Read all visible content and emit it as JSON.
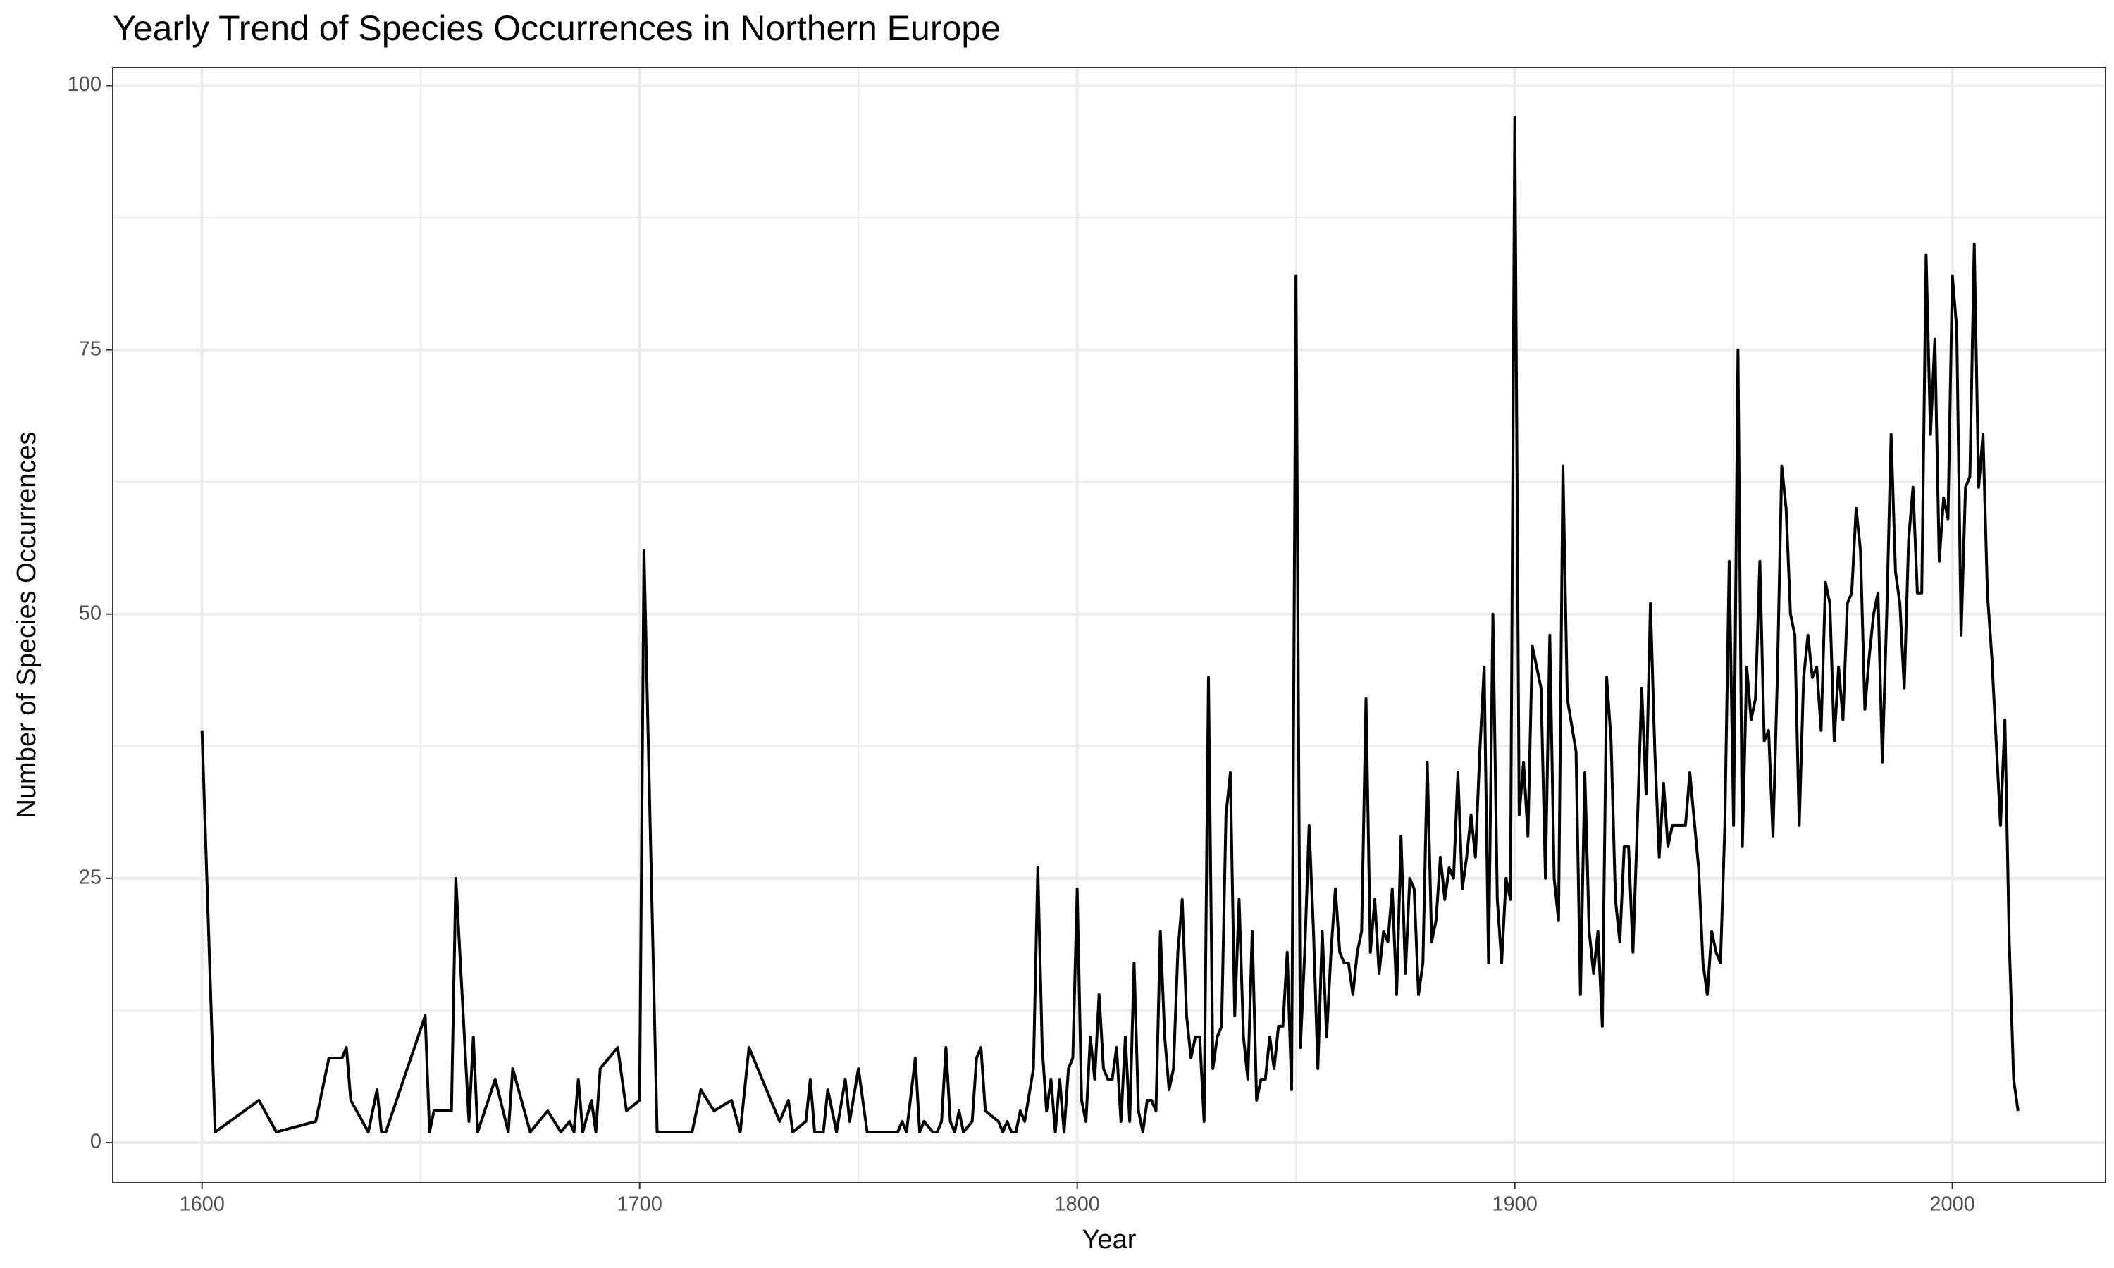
{
  "chart_data": {
    "type": "line",
    "title": "Yearly Trend of Species Occurrences in Northern Europe",
    "x_label": "Year",
    "y_label": "Number of Species Occurrences",
    "xlim": [
      1579.6,
      2035
    ],
    "ylim": [
      -3.8,
      101.7
    ],
    "xticks": [
      1600,
      1700,
      1800,
      1900,
      2000
    ],
    "yticks": [
      0,
      25,
      50,
      75,
      100
    ],
    "x_minor_ticks": [
      1650,
      1750,
      1850,
      1950
    ],
    "y_minor_ticks": [
      12.5,
      37.5,
      62.5,
      87.5
    ],
    "grid": true,
    "series": [
      {
        "name": "Occurrences",
        "color": "#000000",
        "x": [
          1600,
          1603,
          1613,
          1617,
          1626,
          1629,
          1632,
          1633,
          1634,
          1638,
          1640,
          1641,
          1642,
          1651,
          1652,
          1653,
          1657,
          1658,
          1661,
          1662,
          1663,
          1667,
          1670,
          1671,
          1675,
          1679,
          1682,
          1684,
          1685,
          1686,
          1687,
          1689,
          1690,
          1691,
          1695,
          1697,
          1700,
          1701,
          1704,
          1712,
          1714,
          1717,
          1721,
          1723,
          1725,
          1732,
          1734,
          1735,
          1738,
          1739,
          1740,
          1742,
          1743,
          1745,
          1747,
          1748,
          1750,
          1752,
          1759,
          1760,
          1761,
          1763,
          1764,
          1765,
          1767,
          1768,
          1769,
          1770,
          1771,
          1772,
          1773,
          1774,
          1776,
          1777,
          1778,
          1779,
          1782,
          1783,
          1784,
          1785,
          1786,
          1787,
          1788,
          1790,
          1791,
          1792,
          1793,
          1794,
          1795,
          1796,
          1797,
          1798,
          1799,
          1800,
          1801,
          1802,
          1803,
          1804,
          1805,
          1806,
          1807,
          1808,
          1809,
          1810,
          1811,
          1812,
          1813,
          1814,
          1815,
          1816,
          1817,
          1818,
          1819,
          1820,
          1821,
          1822,
          1823,
          1824,
          1825,
          1826,
          1827,
          1828,
          1829,
          1830,
          1831,
          1832,
          1833,
          1834,
          1835,
          1836,
          1837,
          1838,
          1839,
          1840,
          1841,
          1842,
          1843,
          1844,
          1845,
          1846,
          1847,
          1848,
          1849,
          1850,
          1851,
          1852,
          1853,
          1854,
          1855,
          1856,
          1857,
          1858,
          1859,
          1860,
          1861,
          1862,
          1863,
          1864,
          1865,
          1866,
          1867,
          1868,
          1869,
          1870,
          1871,
          1872,
          1873,
          1874,
          1875,
          1876,
          1877,
          1878,
          1879,
          1880,
          1881,
          1882,
          1883,
          1884,
          1885,
          1886,
          1887,
          1888,
          1889,
          1890,
          1891,
          1892,
          1893,
          1894,
          1895,
          1896,
          1897,
          1898,
          1899,
          1900,
          1901,
          1902,
          1903,
          1904,
          1905,
          1906,
          1907,
          1908,
          1909,
          1910,
          1911,
          1912,
          1914,
          1915,
          1916,
          1917,
          1918,
          1919,
          1920,
          1921,
          1922,
          1923,
          1924,
          1925,
          1926,
          1927,
          1928,
          1929,
          1930,
          1931,
          1932,
          1933,
          1934,
          1935,
          1936,
          1937,
          1939,
          1940,
          1942,
          1943,
          1944,
          1945,
          1946,
          1947,
          1948,
          1949,
          1950,
          1951,
          1952,
          1953,
          1954,
          1955,
          1956,
          1957,
          1958,
          1959,
          1960,
          1961,
          1962,
          1963,
          1964,
          1965,
          1966,
          1967,
          1968,
          1969,
          1970,
          1971,
          1972,
          1973,
          1974,
          1975,
          1976,
          1977,
          1978,
          1979,
          1980,
          1981,
          1982,
          1983,
          1984,
          1985,
          1986,
          1987,
          1988,
          1989,
          1990,
          1991,
          1992,
          1993,
          1994,
          1995,
          1996,
          1997,
          1998,
          1999,
          2000,
          2001,
          2002,
          2003,
          2004,
          2005,
          2006,
          2007,
          2008,
          2009,
          2010,
          2011,
          2012,
          2013,
          2014,
          2015
        ],
        "values": [
          39,
          1,
          4,
          1,
          2,
          8,
          8,
          9,
          4,
          1,
          5,
          1,
          1,
          12,
          1,
          3,
          3,
          25,
          2,
          10,
          1,
          6,
          1,
          7,
          1,
          3,
          1,
          2,
          1,
          6,
          1,
          4,
          1,
          7,
          9,
          3,
          4,
          56,
          1,
          1,
          5,
          3,
          4,
          1,
          9,
          2,
          4,
          1,
          2,
          6,
          1,
          1,
          5,
          1,
          6,
          2,
          7,
          1,
          1,
          2,
          1,
          8,
          1,
          2,
          1,
          1,
          2,
          9,
          2,
          1,
          3,
          1,
          2,
          8,
          9,
          3,
          2,
          1,
          2,
          1,
          1,
          3,
          2,
          7,
          26,
          9,
          3,
          6,
          1,
          6,
          1,
          7,
          8,
          24,
          4,
          2,
          10,
          6,
          14,
          7,
          6,
          6,
          9,
          2,
          10,
          2,
          17,
          3,
          1,
          4,
          4,
          3,
          20,
          10,
          5,
          7,
          18,
          23,
          12,
          8,
          10,
          10,
          2,
          44,
          7,
          10,
          11,
          31,
          35,
          12,
          23,
          10,
          6,
          20,
          4,
          6,
          6,
          10,
          7,
          11,
          11,
          18,
          5,
          82,
          9,
          18,
          30,
          20,
          7,
          20,
          10,
          18,
          24,
          18,
          17,
          17,
          14,
          18,
          20,
          42,
          18,
          23,
          16,
          20,
          19,
          24,
          14,
          29,
          16,
          25,
          24,
          14,
          17,
          36,
          19,
          21,
          27,
          23,
          26,
          25,
          35,
          24,
          27,
          31,
          27,
          37,
          45,
          17,
          50,
          23,
          17,
          25,
          23,
          97,
          31,
          36,
          29,
          47,
          45,
          43,
          25,
          48,
          25,
          21,
          64,
          42,
          37,
          14,
          35,
          20,
          16,
          20,
          11,
          44,
          38,
          23,
          19,
          28,
          28,
          18,
          30,
          43,
          33,
          51,
          37,
          27,
          34,
          28,
          30,
          30,
          30,
          35,
          26,
          17,
          14,
          20,
          18,
          17,
          30,
          55,
          30,
          75,
          28,
          45,
          40,
          42,
          55,
          38,
          39,
          29,
          44,
          64,
          60,
          50,
          48,
          30,
          44,
          48,
          44,
          45,
          39,
          53,
          51,
          38,
          45,
          40,
          51,
          52,
          60,
          56,
          41,
          46,
          50,
          52,
          36,
          50,
          67,
          54,
          51,
          43,
          57,
          62,
          52,
          52,
          84,
          67,
          76,
          55,
          61,
          59,
          82,
          77,
          48,
          62,
          63,
          85,
          62,
          67,
          52,
          46,
          38,
          30,
          40,
          19,
          6,
          3
        ]
      }
    ]
  }
}
